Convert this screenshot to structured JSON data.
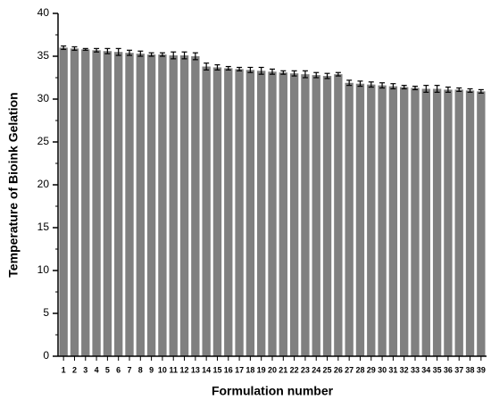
{
  "chart_data": {
    "type": "bar",
    "xlabel": "Formulation number",
    "ylabel": "Temperature of Bioink Gelation",
    "categories": [
      "1",
      "2",
      "3",
      "4",
      "5",
      "6",
      "7",
      "8",
      "9",
      "10",
      "11",
      "12",
      "13",
      "14",
      "15",
      "16",
      "17",
      "18",
      "19",
      "20",
      "21",
      "22",
      "23",
      "24",
      "25",
      "26",
      "27",
      "28",
      "29",
      "30",
      "31",
      "32",
      "33",
      "34",
      "35",
      "36",
      "37",
      "38",
      "39"
    ],
    "values": [
      36.0,
      35.9,
      35.8,
      35.7,
      35.6,
      35.5,
      35.4,
      35.3,
      35.2,
      35.2,
      35.1,
      35.1,
      35.0,
      33.8,
      33.7,
      33.6,
      33.5,
      33.4,
      33.3,
      33.2,
      33.1,
      33.0,
      32.9,
      32.8,
      32.7,
      32.9,
      31.9,
      31.8,
      31.7,
      31.6,
      31.5,
      31.4,
      31.3,
      31.2,
      31.2,
      31.1,
      31.1,
      31.0,
      30.9
    ],
    "errors": [
      0.2,
      0.2,
      0.1,
      0.2,
      0.3,
      0.4,
      0.3,
      0.3,
      0.2,
      0.2,
      0.4,
      0.4,
      0.4,
      0.4,
      0.3,
      0.2,
      0.2,
      0.3,
      0.4,
      0.3,
      0.2,
      0.3,
      0.4,
      0.3,
      0.3,
      0.2,
      0.3,
      0.3,
      0.3,
      0.3,
      0.3,
      0.2,
      0.2,
      0.4,
      0.4,
      0.3,
      0.2,
      0.2,
      0.2
    ],
    "color": "#808080",
    "ylim": [
      0,
      40
    ],
    "yticks": [
      0,
      5,
      10,
      15,
      20,
      25,
      30,
      35,
      40
    ],
    "yminorticks": [
      2.5,
      7.5,
      12.5,
      17.5,
      22.5,
      27.5,
      32.5,
      37.5
    ]
  }
}
